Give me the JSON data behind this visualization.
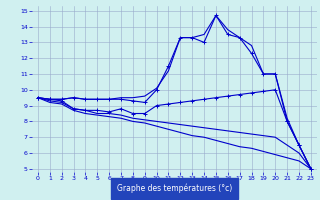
{
  "xlabel": "Graphe des températures (°c)",
  "x": [
    0,
    1,
    2,
    3,
    4,
    5,
    6,
    7,
    8,
    9,
    10,
    11,
    12,
    13,
    14,
    15,
    16,
    17,
    18,
    19,
    20,
    21,
    22,
    23
  ],
  "line_main": [
    9.5,
    9.4,
    9.4,
    9.5,
    9.4,
    9.4,
    9.4,
    9.4,
    9.3,
    9.2,
    10.0,
    11.5,
    13.3,
    13.3,
    13.0,
    14.7,
    13.5,
    13.3,
    12.3,
    11.0,
    11.0,
    8.0,
    6.5,
    5.0
  ],
  "line_upper": [
    9.5,
    9.4,
    9.4,
    9.5,
    9.4,
    9.4,
    9.4,
    9.5,
    9.5,
    9.6,
    10.1,
    11.2,
    13.3,
    13.3,
    13.5,
    14.7,
    13.8,
    13.3,
    12.8,
    11.0,
    11.0,
    8.2,
    6.5,
    5.0
  ],
  "line_mid": [
    9.5,
    9.4,
    9.3,
    8.8,
    8.7,
    8.7,
    8.6,
    8.8,
    8.5,
    8.5,
    9.0,
    9.1,
    9.2,
    9.3,
    9.4,
    9.5,
    9.6,
    9.7,
    9.8,
    9.9,
    10.0,
    8.0,
    6.5,
    5.0
  ],
  "line_lower1": [
    9.5,
    9.3,
    9.2,
    8.8,
    8.7,
    8.5,
    8.5,
    8.4,
    8.2,
    8.1,
    8.0,
    7.9,
    7.8,
    7.7,
    7.6,
    7.5,
    7.4,
    7.3,
    7.2,
    7.1,
    7.0,
    6.5,
    6.0,
    5.0
  ],
  "line_lower2": [
    9.5,
    9.2,
    9.1,
    8.7,
    8.5,
    8.4,
    8.3,
    8.2,
    8.0,
    7.9,
    7.7,
    7.5,
    7.3,
    7.1,
    7.0,
    6.8,
    6.6,
    6.4,
    6.3,
    6.1,
    5.9,
    5.7,
    5.5,
    5.0
  ],
  "ylim": [
    5,
    15
  ],
  "xlim": [
    0,
    23
  ],
  "yticks": [
    5,
    6,
    7,
    8,
    9,
    10,
    11,
    12,
    13,
    14,
    15
  ],
  "xticks": [
    0,
    1,
    2,
    3,
    4,
    5,
    6,
    7,
    8,
    9,
    10,
    11,
    12,
    13,
    14,
    15,
    16,
    17,
    18,
    19,
    20,
    21,
    22,
    23
  ],
  "line_color": "#0000cc",
  "bg_color": "#d0f0f0",
  "grid_color": "#99aacc",
  "xlabel_bg": "#2244bb",
  "xlabel_fg": "#ffffff"
}
